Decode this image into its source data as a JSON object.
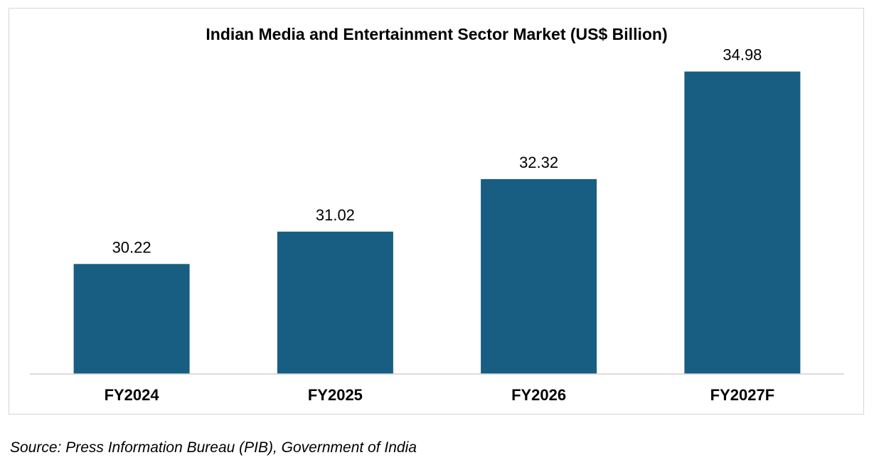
{
  "chart_data": {
    "type": "bar",
    "title": "Indian Media and Entertainment Sector Market (US$ Billion)",
    "categories": [
      "FY2024",
      "FY2025",
      "FY2026",
      "FY2027F"
    ],
    "series": [
      {
        "values": [
          30.22,
          31.02,
          32.32,
          34.98
        ],
        "value_labels": [
          "30.22",
          "31.02",
          "32.32",
          "34.98"
        ],
        "color": "#175e82"
      }
    ],
    "xlabel": "",
    "ylabel": "",
    "ylim": [
      27.5,
      35.5
    ],
    "y_axis_visible": false,
    "grid": false,
    "legend": "none"
  },
  "source": {
    "label": "Source:",
    "text": " Press Information Bureau (PIB), Government of India"
  },
  "colors": {
    "bar": "#175e82",
    "axis_line": "#d0d0d0",
    "frame_border": "#d6d6d6",
    "text": "#000000"
  }
}
